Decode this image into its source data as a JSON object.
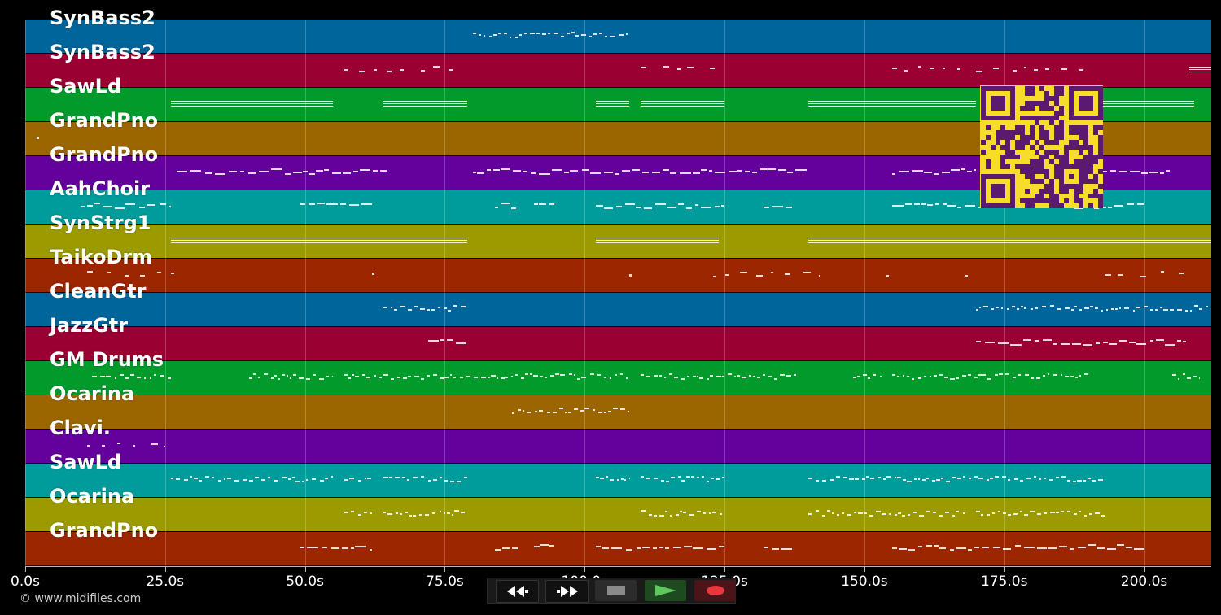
{
  "tracks": [
    {
      "label": "SynBass2",
      "color": "#00659b"
    },
    {
      "label": "SynBass2",
      "color": "#9b0033"
    },
    {
      "label": "SawLd",
      "color": "#009b2a"
    },
    {
      "label": "GrandPno",
      "color": "#9b6600"
    },
    {
      "label": "GrandPno",
      "color": "#64009b"
    },
    {
      "label": "AahChoir",
      "color": "#009b9b"
    },
    {
      "label": "SynStrg1",
      "color": "#9b9b00"
    },
    {
      "label": "TaikoDrm",
      "color": "#9b2600"
    },
    {
      "label": "CleanGtr",
      "color": "#00659b"
    },
    {
      "label": "JazzGtr",
      "color": "#9b0033"
    },
    {
      "label": "GM Drums",
      "color": "#009b2a"
    },
    {
      "label": "Ocarina",
      "color": "#9b6600"
    },
    {
      "label": "Clavi.",
      "color": "#64009b"
    },
    {
      "label": "SawLd",
      "color": "#009b9b"
    },
    {
      "label": "Ocarina",
      "color": "#9b9b00"
    },
    {
      "label": "GrandPno",
      "color": "#9b2600"
    }
  ],
  "timeline": {
    "max_seconds": 212,
    "ticks": [
      "0.0s",
      "25.0s",
      "50.0s",
      "75.0s",
      "100.0s",
      "125.0s",
      "150.0s",
      "175.0s",
      "200.0s"
    ]
  },
  "transport": {
    "rewind_icon": "rewind-icon",
    "fast_forward_icon": "fast-forward-icon",
    "stop_icon": "stop-icon",
    "play_icon": "play-icon",
    "record_icon": "record-icon",
    "play_color": "#5ec85e",
    "record_color": "#e8383d"
  },
  "footer": {
    "copyright": "© www.midifiles.com"
  },
  "qr": {
    "foreground": "#5a1a6e",
    "background": "#f8dc2a"
  }
}
